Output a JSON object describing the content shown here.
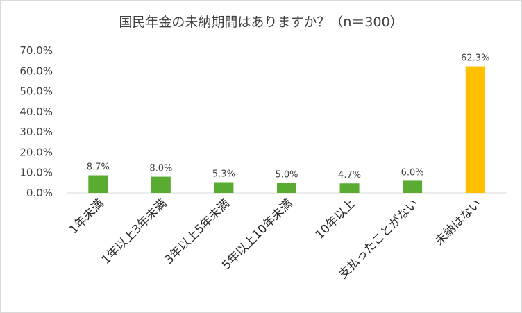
{
  "chart_data": {
    "type": "bar",
    "title": "国民年金の未納期間はありますか？（n＝300）",
    "xlabel": "",
    "ylabel": "",
    "categories": [
      "1年未満",
      "1年以上3年未満",
      "3年以上5年未満",
      "5年以上10年未満",
      "10年以上",
      "支払ったことがない",
      "未納はない"
    ],
    "values": [
      8.7,
      8.0,
      5.3,
      5.0,
      4.7,
      6.0,
      62.3
    ],
    "value_labels": [
      "8.7%",
      "8.0%",
      "5.3%",
      "5.0%",
      "4.7%",
      "6.0%",
      "62.3%"
    ],
    "ylim": [
      0,
      70
    ],
    "yticks": [
      0,
      10,
      20,
      30,
      40,
      50,
      60,
      70
    ],
    "ytick_labels": [
      "0.0%",
      "10.0%",
      "20.0%",
      "30.0%",
      "40.0%",
      "50.0%",
      "60.0%",
      "70.0%"
    ],
    "grid": false,
    "legend": "none",
    "colors": {
      "default_bar": "#5aab32",
      "highlight_bar": "#ffc000",
      "axis": "#d9d9d9",
      "text": "#404040"
    },
    "highlight_index": 6
  }
}
